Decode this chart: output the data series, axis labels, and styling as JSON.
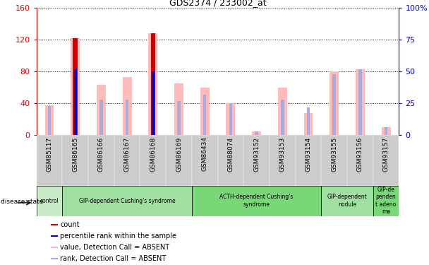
{
  "title": "GDS2374 / 233002_at",
  "samples": [
    "GSM85117",
    "GSM86165",
    "GSM86166",
    "GSM86167",
    "GSM86168",
    "GSM86169",
    "GSM86434",
    "GSM88074",
    "GSM93152",
    "GSM93153",
    "GSM93154",
    "GSM93155",
    "GSM93156",
    "GSM93157"
  ],
  "pink_values": [
    38,
    122,
    63,
    73,
    128,
    65,
    60,
    40,
    5,
    60,
    28,
    80,
    83,
    10
  ],
  "blue_rank_values": [
    23,
    52,
    28,
    28,
    50,
    27,
    32,
    25,
    3,
    28,
    22,
    48,
    52,
    6
  ],
  "red_count": [
    null,
    122,
    null,
    null,
    128,
    null,
    null,
    null,
    null,
    null,
    null,
    null,
    null,
    null
  ],
  "blue_count": [
    null,
    52,
    null,
    null,
    50,
    null,
    null,
    null,
    null,
    null,
    null,
    null,
    null,
    null
  ],
  "ylim_left": [
    0,
    160
  ],
  "ylim_right": [
    0,
    100
  ],
  "yticks_left": [
    0,
    40,
    80,
    120,
    160
  ],
  "yticks_right": [
    0,
    25,
    50,
    75,
    100
  ],
  "ytick_labels_left": [
    "0",
    "40",
    "80",
    "120",
    "160"
  ],
  "ytick_labels_right": [
    "0",
    "25",
    "50",
    "75",
    "100%"
  ],
  "groups": [
    {
      "label": "control",
      "start": 0,
      "end": 1,
      "color": "#c8ecc8"
    },
    {
      "label": "GIP-dependent Cushing's syndrome",
      "start": 1,
      "end": 6,
      "color": "#a0e0a0"
    },
    {
      "label": "ACTH-dependent Cushing's\nsyndrome",
      "start": 6,
      "end": 11,
      "color": "#78d878"
    },
    {
      "label": "GIP-dependent\nnodule",
      "start": 11,
      "end": 13,
      "color": "#a0e0a0"
    },
    {
      "label": "GIP-de\npenden\nt adeno\nma",
      "start": 13,
      "end": 14,
      "color": "#78d878"
    }
  ],
  "pink_color": "#ffbbbb",
  "blue_bar_color": "#aaaadd",
  "red_bar_color": "#cc0000",
  "dark_blue_color": "#0000bb",
  "axis_color_left": "#cc0000",
  "axis_color_right": "#0000bb",
  "grid_color": "#000000",
  "xtick_bg": "#cccccc"
}
